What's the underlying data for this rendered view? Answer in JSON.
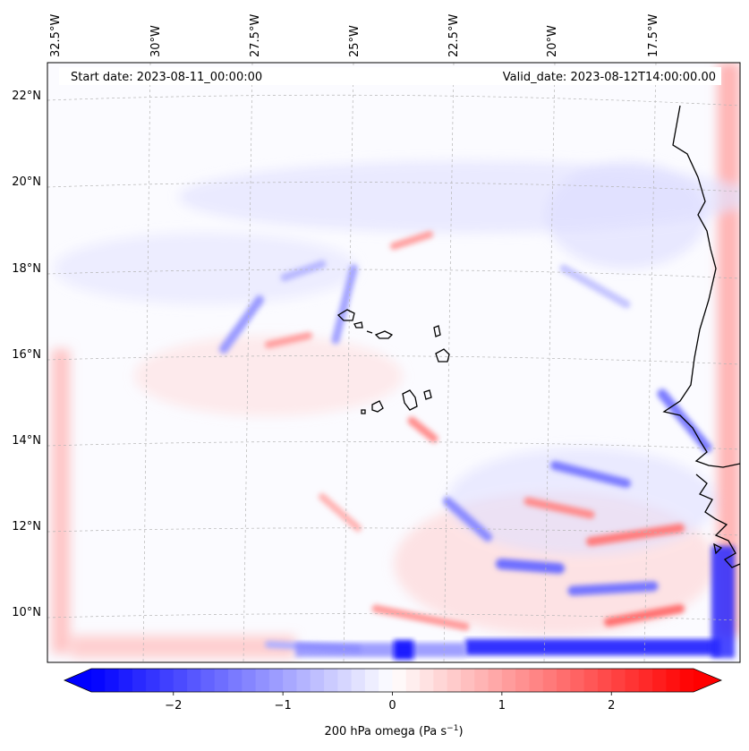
{
  "header": {
    "start_date": "Start date: 2023-08-11_00:00:00",
    "valid_date": "Valid_date: 2023-08-12T14:00:00.00"
  },
  "map": {
    "lon_labels": [
      "32.5°W",
      "30°W",
      "27.5°W",
      "25°W",
      "22.5°W",
      "20°W",
      "17.5°W"
    ],
    "lat_labels": [
      "22°N",
      "20°N",
      "18°N",
      "16°N",
      "14°N",
      "12°N",
      "10°N"
    ],
    "field": "200 hPa omega",
    "colors": {
      "negative": "#0000ff",
      "zero": "#ffffff",
      "positive": "#ff0000",
      "coast": "#000000",
      "grid": "#b0b0b0"
    }
  },
  "colorbar": {
    "ticks": [
      "−2",
      "−1",
      "0",
      "1",
      "2"
    ],
    "label_main": "200 hPa omega (Pa s",
    "label_sup": "−1",
    "label_close": ")",
    "vmin": -2.75,
    "vmax": 2.75
  }
}
